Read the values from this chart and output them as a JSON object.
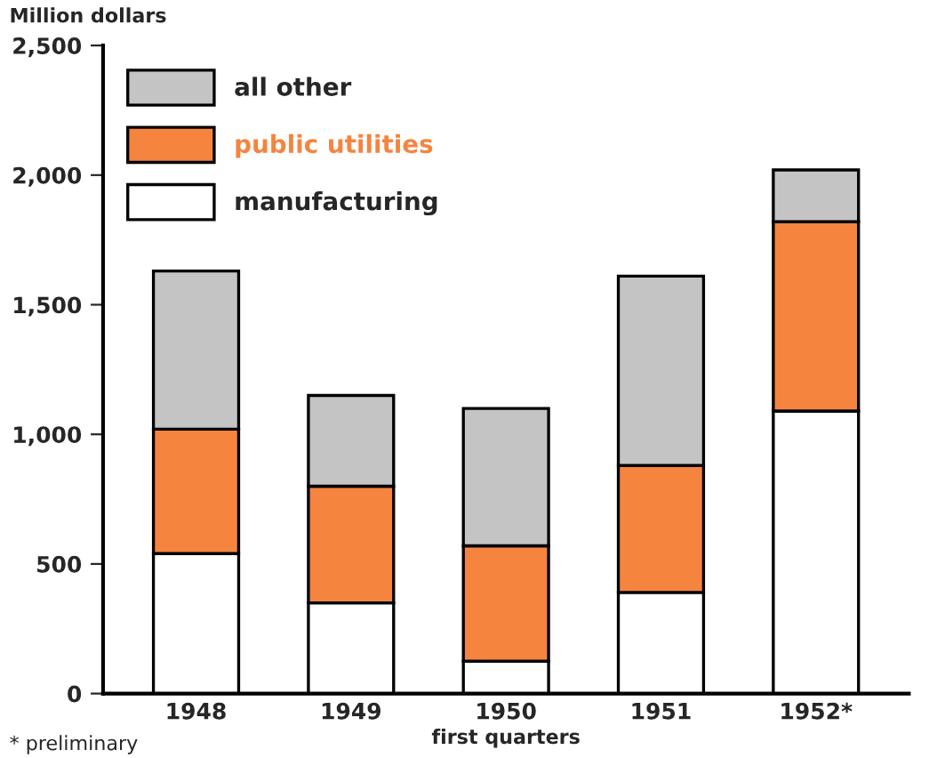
{
  "chart_data": {
    "type": "bar",
    "stacked": true,
    "ylabel": "Million dollars",
    "xlabel": "first quarters",
    "categories": [
      "1948",
      "1949",
      "1950",
      "1951",
      "1952*"
    ],
    "series": [
      {
        "name": "manufacturing",
        "color": "#ffffff",
        "values": [
          540,
          350,
          125,
          390,
          1090
        ]
      },
      {
        "name": "public utilities",
        "color": "#f5843f",
        "values": [
          480,
          450,
          445,
          490,
          730
        ]
      },
      {
        "name": "all other",
        "color": "#c4c4c4",
        "values": [
          610,
          350,
          530,
          730,
          200
        ]
      }
    ],
    "ylim": [
      0,
      2500
    ],
    "yticks": [
      0,
      500,
      {
        "value": 1000,
        "label": "1,000"
      },
      {
        "value": 1500,
        "label": "1,500"
      },
      {
        "value": 2000,
        "label": "2,000"
      },
      {
        "value": 2500,
        "label": "2,500"
      }
    ],
    "legend": "top left",
    "grid": false,
    "annotations": [
      "* preliminary"
    ]
  }
}
